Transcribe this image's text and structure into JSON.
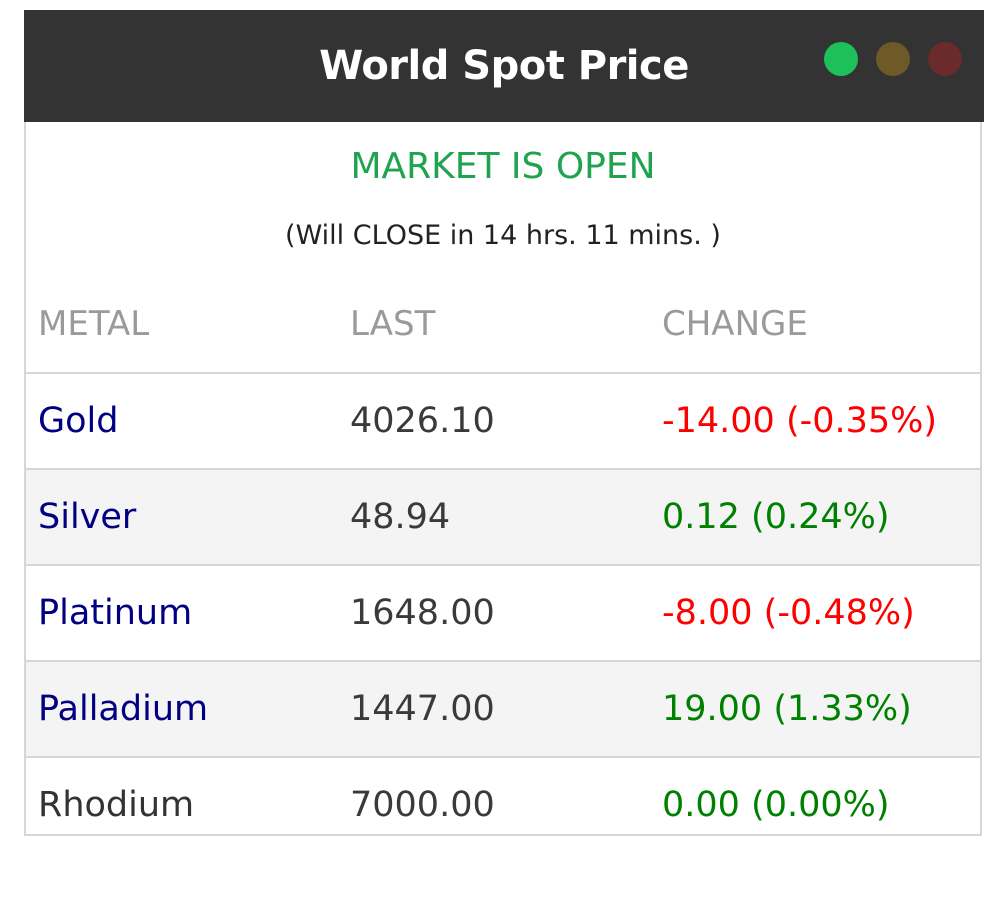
{
  "widget": {
    "title": "World Spot Price",
    "status_lights": [
      {
        "name": "green",
        "color": "#1ec05a"
      },
      {
        "name": "amber",
        "color": "#6e5a26"
      },
      {
        "name": "red",
        "color": "#6b2a2b"
      }
    ]
  },
  "market": {
    "status": "MARKET IS OPEN",
    "countdown": "(Will CLOSE in 14 hrs. 11 mins. )"
  },
  "table": {
    "headers": {
      "metal": "METAL",
      "last": "LAST",
      "change": "CHANGE"
    },
    "rows": [
      {
        "metal": "Gold",
        "last": "4026.10",
        "change": "-14.00 (-0.35%)",
        "direction": "down",
        "link": true
      },
      {
        "metal": "Silver",
        "last": "48.94",
        "change": "0.12 (0.24%)",
        "direction": "up",
        "link": true
      },
      {
        "metal": "Platinum",
        "last": "1648.00",
        "change": "-8.00 (-0.48%)",
        "direction": "down",
        "link": true
      },
      {
        "metal": "Palladium",
        "last": "1447.00",
        "change": "19.00 (1.33%)",
        "direction": "up",
        "link": true
      },
      {
        "metal": "Rhodium",
        "last": "7000.00",
        "change": "0.00 (0.00%)",
        "direction": "up",
        "link": false
      }
    ]
  },
  "colors": {
    "header_bg": "#333333",
    "open_green": "#1fa34f",
    "link_navy": "#000080",
    "negative": "#ff0000",
    "positive": "#008000",
    "alt_row": "#f4f4f4"
  }
}
